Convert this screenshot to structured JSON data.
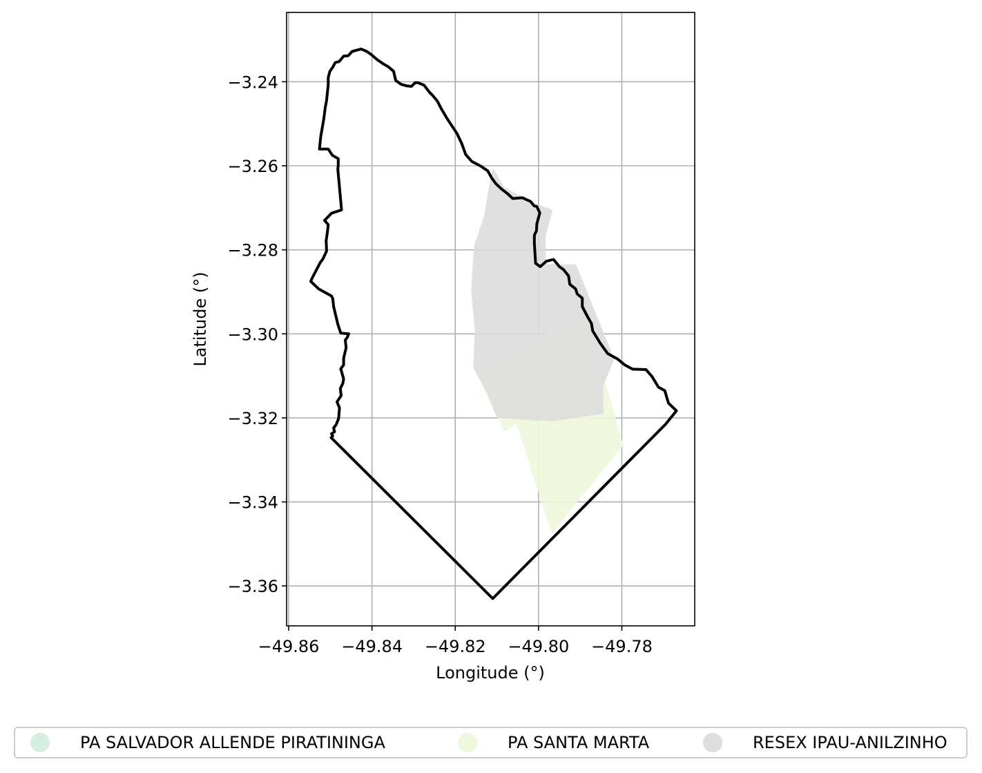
{
  "chart_data": {
    "type": "map",
    "xlabel": "Longitude (°)",
    "ylabel": "Latitude (°)",
    "xlim": [
      -49.8605,
      -49.7625
    ],
    "ylim": [
      -3.3695,
      -3.2235
    ],
    "x_ticks": [
      {
        "value": -49.86,
        "label": "−49.86"
      },
      {
        "value": -49.84,
        "label": "−49.84"
      },
      {
        "value": -49.82,
        "label": "−49.82"
      },
      {
        "value": -49.8,
        "label": "−49.80"
      },
      {
        "value": -49.78,
        "label": "−49.78"
      }
    ],
    "y_ticks": [
      {
        "value": -3.24,
        "label": "−3.24"
      },
      {
        "value": -3.26,
        "label": "−3.26"
      },
      {
        "value": -3.28,
        "label": "−3.28"
      },
      {
        "value": -3.3,
        "label": "−3.30"
      },
      {
        "value": -3.32,
        "label": "−3.32"
      },
      {
        "value": -3.34,
        "label": "−3.34"
      },
      {
        "value": -3.36,
        "label": "−3.36"
      }
    ],
    "grid": true,
    "legend_position": "bottom",
    "legend": [
      {
        "name": "PA SALVADOR ALLENDE PIRATININGA",
        "color": "#d5efe3"
      },
      {
        "name": "PA SANTA MARTA",
        "color": "#eef8dc"
      },
      {
        "name": "RESEX IPAU-ANILZINHO",
        "color": "#dddddd"
      }
    ],
    "areas": [
      {
        "name": "PA SANTA MARTA",
        "color": "#eef8dc",
        "lonlat": [
          [
            -49.8156,
            -3.3084
          ],
          [
            -49.7887,
            -3.2955
          ],
          [
            -49.7796,
            -3.3265
          ],
          [
            -49.7968,
            -3.3475
          ],
          [
            -49.8054,
            -3.3213
          ],
          [
            -49.8081,
            -3.3234
          ]
        ]
      },
      {
        "name": "RESEX IPAU-ANILZINHO",
        "color": "#dddddd",
        "lonlat": [
          [
            -49.811,
            -3.2605
          ],
          [
            -49.8082,
            -3.2651
          ],
          [
            -49.802,
            -3.2685
          ],
          [
            -49.7966,
            -3.2705
          ],
          [
            -49.7983,
            -3.2767
          ],
          [
            -49.7983,
            -3.2834
          ],
          [
            -49.791,
            -3.2835
          ],
          [
            -49.7818,
            -3.306
          ],
          [
            -49.7845,
            -3.3125
          ],
          [
            -49.7844,
            -3.319
          ],
          [
            -49.7965,
            -3.3208
          ],
          [
            -49.804,
            -3.3204
          ],
          [
            -49.81,
            -3.32
          ],
          [
            -49.8126,
            -3.3135
          ],
          [
            -49.8157,
            -3.308
          ],
          [
            -49.8153,
            -3.299
          ],
          [
            -49.8162,
            -3.2895
          ],
          [
            -49.8155,
            -3.279
          ],
          [
            -49.8131,
            -3.272
          ],
          [
            -49.812,
            -3.2655
          ]
        ]
      }
    ],
    "boundary": {
      "name": "study-area",
      "color": "#000000",
      "lonlat": [
        [
          -49.8498,
          -3.3247
        ],
        [
          -49.8494,
          -3.3243
        ],
        [
          -49.8497,
          -3.3238
        ],
        [
          -49.849,
          -3.3233
        ],
        [
          -49.8492,
          -3.3224
        ],
        [
          -49.8486,
          -3.3216
        ],
        [
          -49.848,
          -3.3201
        ],
        [
          -49.8478,
          -3.3176
        ],
        [
          -49.8484,
          -3.3162
        ],
        [
          -49.8474,
          -3.3147
        ],
        [
          -49.8476,
          -3.313
        ],
        [
          -49.847,
          -3.3118
        ],
        [
          -49.8468,
          -3.3107
        ],
        [
          -49.8475,
          -3.3083
        ],
        [
          -49.8468,
          -3.3074
        ],
        [
          -49.8468,
          -3.3058
        ],
        [
          -49.8462,
          -3.3033
        ],
        [
          -49.8464,
          -3.3015
        ],
        [
          -49.8459,
          -3.3008
        ],
        [
          -49.8456,
          -3.3
        ],
        [
          -49.8475,
          -3.2998
        ],
        [
          -49.8482,
          -3.2977
        ],
        [
          -49.8492,
          -3.2935
        ],
        [
          -49.8494,
          -3.2917
        ],
        [
          -49.8497,
          -3.291
        ],
        [
          -49.8528,
          -3.2893
        ],
        [
          -49.8547,
          -3.2875
        ],
        [
          -49.8544,
          -3.2868
        ],
        [
          -49.8524,
          -3.283
        ],
        [
          -49.8518,
          -3.2822
        ],
        [
          -49.8509,
          -3.2803
        ],
        [
          -49.851,
          -3.2778
        ],
        [
          -49.8507,
          -3.2758
        ],
        [
          -49.8505,
          -3.274
        ],
        [
          -49.8514,
          -3.273
        ],
        [
          -49.8497,
          -3.2713
        ],
        [
          -49.8473,
          -3.2705
        ],
        [
          -49.8482,
          -3.2608
        ],
        [
          -49.8481,
          -3.2598
        ],
        [
          -49.8481,
          -3.2583
        ],
        [
          -49.8495,
          -3.2575
        ],
        [
          -49.8505,
          -3.256
        ],
        [
          -49.8526,
          -3.256
        ],
        [
          -49.8523,
          -3.253
        ],
        [
          -49.8516,
          -3.249
        ],
        [
          -49.8512,
          -3.246
        ],
        [
          -49.8509,
          -3.2445
        ],
        [
          -49.8508,
          -3.2435
        ],
        [
          -49.8505,
          -3.2407
        ],
        [
          -49.8505,
          -3.239
        ],
        [
          -49.8501,
          -3.2375
        ],
        [
          -49.8494,
          -3.2365
        ],
        [
          -49.8488,
          -3.2354
        ],
        [
          -49.8479,
          -3.2352
        ],
        [
          -49.8468,
          -3.2339
        ],
        [
          -49.8457,
          -3.2338
        ],
        [
          -49.8448,
          -3.2328
        ],
        [
          -49.8437,
          -3.2325
        ],
        [
          -49.8426,
          -3.2322
        ],
        [
          -49.8412,
          -3.2328
        ],
        [
          -49.8402,
          -3.2335
        ],
        [
          -49.8388,
          -3.2347
        ],
        [
          -49.8372,
          -3.2358
        ],
        [
          -49.8361,
          -3.2364
        ],
        [
          -49.8348,
          -3.2375
        ],
        [
          -49.8343,
          -3.2397
        ],
        [
          -49.833,
          -3.2406
        ],
        [
          -49.8316,
          -3.241
        ],
        [
          -49.8305,
          -3.2411
        ],
        [
          -49.8296,
          -3.2402
        ],
        [
          -49.829,
          -3.2402
        ],
        [
          -49.8283,
          -3.2405
        ],
        [
          -49.8275,
          -3.2408
        ],
        [
          -49.8262,
          -3.2425
        ],
        [
          -49.8254,
          -3.2433
        ],
        [
          -49.8243,
          -3.2446
        ],
        [
          -49.8233,
          -3.2465
        ],
        [
          -49.822,
          -3.2487
        ],
        [
          -49.8206,
          -3.2508
        ],
        [
          -49.8196,
          -3.2523
        ],
        [
          -49.8184,
          -3.2548
        ],
        [
          -49.8175,
          -3.2573
        ],
        [
          -49.816,
          -3.259
        ],
        [
          -49.814,
          -3.26
        ],
        [
          -49.8122,
          -3.2612
        ],
        [
          -49.8112,
          -3.263
        ],
        [
          -49.8102,
          -3.2643
        ],
        [
          -49.8088,
          -3.2656
        ],
        [
          -49.8075,
          -3.2666
        ],
        [
          -49.8062,
          -3.2678
        ],
        [
          -49.8039,
          -3.2676
        ],
        [
          -49.8019,
          -3.2685
        ],
        [
          -49.8011,
          -3.2695
        ],
        [
          -49.8004,
          -3.2697
        ],
        [
          -49.7999,
          -3.2708
        ],
        [
          -49.7997,
          -3.2712
        ],
        [
          -49.8004,
          -3.2738
        ],
        [
          -49.8005,
          -3.2755
        ],
        [
          -49.801,
          -3.2765
        ],
        [
          -49.801,
          -3.2785
        ],
        [
          -49.8007,
          -3.2832
        ],
        [
          -49.7996,
          -3.284
        ],
        [
          -49.7981,
          -3.2827
        ],
        [
          -49.7964,
          -3.2823
        ],
        [
          -49.795,
          -3.284
        ],
        [
          -49.794,
          -3.2847
        ],
        [
          -49.7928,
          -3.2862
        ],
        [
          -49.7925,
          -3.2882
        ],
        [
          -49.7911,
          -3.2893
        ],
        [
          -49.7907,
          -3.2905
        ],
        [
          -49.7895,
          -3.2915
        ],
        [
          -49.7895,
          -3.2935
        ],
        [
          -49.7883,
          -3.2958
        ],
        [
          -49.7873,
          -3.2975
        ],
        [
          -49.787,
          -3.2993
        ],
        [
          -49.7852,
          -3.3022
        ],
        [
          -49.7834,
          -3.3047
        ],
        [
          -49.781,
          -3.306
        ],
        [
          -49.7793,
          -3.3074
        ],
        [
          -49.7774,
          -3.3084
        ],
        [
          -49.7742,
          -3.3085
        ],
        [
          -49.7728,
          -3.3101
        ],
        [
          -49.7712,
          -3.3127
        ],
        [
          -49.7697,
          -3.3135
        ],
        [
          -49.7688,
          -3.3165
        ],
        [
          -49.7669,
          -3.3183
        ],
        [
          -49.7695,
          -3.3215
        ],
        [
          -49.811,
          -3.363
        ],
        [
          -49.8498,
          -3.3247
        ]
      ]
    }
  }
}
